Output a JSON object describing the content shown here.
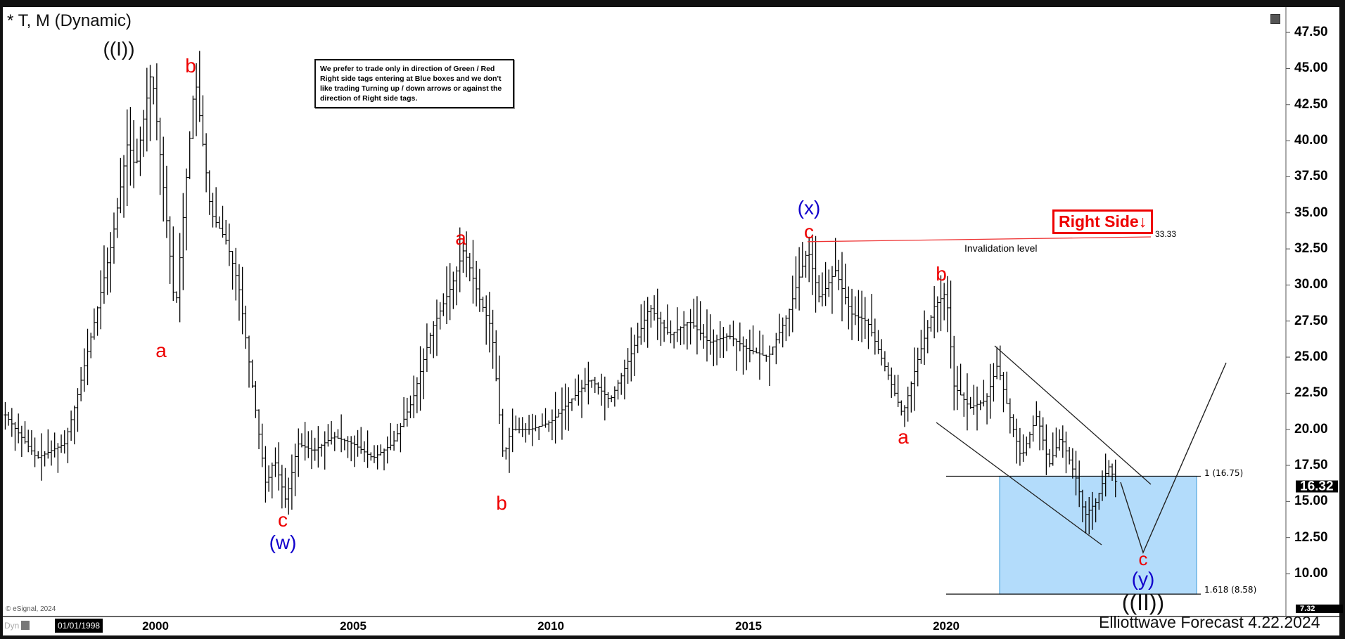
{
  "header": {
    "title": "* T, M (Dynamic)",
    "restore_icon": "window-restore-icon"
  },
  "note": "We prefer to trade only in direction of Green / Red Right side tags entering at Blue boxes and we don't like trading Turning up / down arrows or against the direction of Right side tags.",
  "right_side_tag": {
    "label": "Right Side",
    "arrow": "↓",
    "color": "#ee0000"
  },
  "invalidation": {
    "label": "Invalidation level",
    "value": "33.33"
  },
  "fib_levels": [
    {
      "label": "1 (16.75)",
      "price": 16.75
    },
    {
      "label": "1.618 (8.58)",
      "price": 8.58
    }
  ],
  "box_color": "#b3dcfb",
  "wave_labels": [
    {
      "text": "((I))",
      "color": "#111111"
    },
    {
      "text": "b",
      "color": "#ee0000"
    },
    {
      "text": "a",
      "color": "#ee0000"
    },
    {
      "text": "c",
      "color": "#ee0000"
    },
    {
      "text": "(w)",
      "color": "#1010cc"
    },
    {
      "text": "a",
      "color": "#ee0000"
    },
    {
      "text": "b",
      "color": "#ee0000"
    },
    {
      "text": "(x)",
      "color": "#1010cc"
    },
    {
      "text": "c",
      "color": "#ee0000"
    },
    {
      "text": "b",
      "color": "#ee0000"
    },
    {
      "text": "a",
      "color": "#ee0000"
    },
    {
      "text": "c",
      "color": "#ee0000"
    },
    {
      "text": "(y)",
      "color": "#1010cc"
    },
    {
      "text": "((II))",
      "color": "#111111"
    }
  ],
  "footer": {
    "copyright": "© eSignal, 2024",
    "dyn": "Dyn",
    "start_date": "01/01/1998",
    "brand": "Elliottwave Forecast 4.22.2024"
  },
  "chart_data": {
    "type": "ohlc-bar",
    "title": "* T, M (Dynamic)",
    "x_ticks": [
      "2000",
      "2005",
      "2010",
      "2015",
      "2020"
    ],
    "y_ticks": [
      "47.50",
      "45.00",
      "42.50",
      "40.00",
      "37.50",
      "35.00",
      "32.50",
      "30.00",
      "27.50",
      "25.00",
      "22.50",
      "20.00",
      "17.50",
      "15.00",
      "12.50",
      "10.00"
    ],
    "ylim": [
      7.32,
      48.5
    ],
    "last_price": "16.32",
    "axis_low": "7.32",
    "price_path": [
      [
        1996.2,
        21
      ],
      [
        1997.0,
        18
      ],
      [
        1997.7,
        19
      ],
      [
        1998.0,
        22
      ],
      [
        1998.5,
        28
      ],
      [
        1998.9,
        33
      ],
      [
        1999.3,
        40
      ],
      [
        1999.5,
        38
      ],
      [
        1999.9,
        45
      ],
      [
        2000.3,
        34
      ],
      [
        2000.5,
        28
      ],
      [
        2000.8,
        38
      ],
      [
        2001.0,
        44.5
      ],
      [
        2001.4,
        35
      ],
      [
        2001.8,
        33
      ],
      [
        2002.1,
        30
      ],
      [
        2002.5,
        22
      ],
      [
        2002.8,
        16
      ],
      [
        2003.0,
        18
      ],
      [
        2003.3,
        15
      ],
      [
        2003.6,
        19
      ],
      [
        2004.0,
        18.5
      ],
      [
        2004.5,
        19.5
      ],
      [
        2005.0,
        19
      ],
      [
        2005.5,
        18
      ],
      [
        2006.0,
        19
      ],
      [
        2006.5,
        22
      ],
      [
        2007.0,
        27
      ],
      [
        2007.5,
        30
      ],
      [
        2007.8,
        32.5
      ],
      [
        2008.2,
        29
      ],
      [
        2008.5,
        27
      ],
      [
        2008.8,
        18
      ],
      [
        2009.0,
        20
      ],
      [
        2009.5,
        20
      ],
      [
        2010.0,
        20.5
      ],
      [
        2010.5,
        22
      ],
      [
        2011.0,
        23.5
      ],
      [
        2011.5,
        22
      ],
      [
        2012.0,
        25
      ],
      [
        2012.5,
        28.5
      ],
      [
        2013.0,
        26.5
      ],
      [
        2013.5,
        27.5
      ],
      [
        2014.0,
        26
      ],
      [
        2014.5,
        26.5
      ],
      [
        2015.0,
        25.5
      ],
      [
        2015.5,
        25
      ],
      [
        2016.0,
        28
      ],
      [
        2016.5,
        32.5
      ],
      [
        2016.8,
        29
      ],
      [
        2017.2,
        31
      ],
      [
        2017.6,
        28
      ],
      [
        2018.0,
        27.5
      ],
      [
        2018.5,
        24
      ],
      [
        2018.9,
        21
      ],
      [
        2019.3,
        25
      ],
      [
        2019.7,
        28.5
      ],
      [
        2020.0,
        29.5
      ],
      [
        2020.2,
        23
      ],
      [
        2020.6,
        21.5
      ],
      [
        2021.0,
        22
      ],
      [
        2021.3,
        24.5
      ],
      [
        2021.6,
        21
      ],
      [
        2021.9,
        18
      ],
      [
        2022.3,
        21
      ],
      [
        2022.6,
        17.5
      ],
      [
        2022.9,
        19.5
      ],
      [
        2023.3,
        16.5
      ],
      [
        2023.5,
        14
      ],
      [
        2023.8,
        15
      ],
      [
        2024.1,
        17.5
      ],
      [
        2024.3,
        16.3
      ]
    ]
  }
}
